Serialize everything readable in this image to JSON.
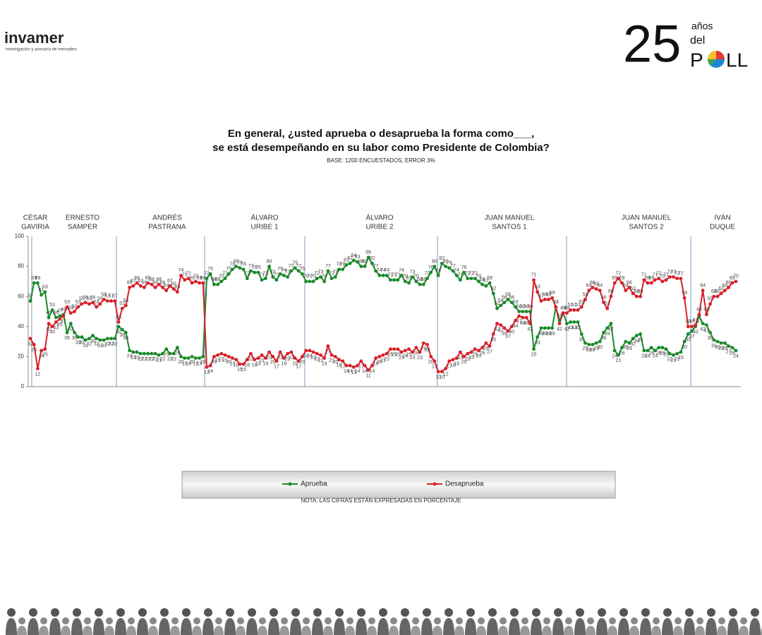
{
  "header": {
    "logo": "invamer",
    "logo_sub": "investigación y asesoría de mercadeo",
    "badge_num": "25",
    "badge_a": "años",
    "badge_b": "del",
    "badge_c": "P",
    "badge_d": "LL"
  },
  "chart_data": {
    "type": "line",
    "title": "En general, ¿usted aprueba o desaprueba la forma como___,",
    "title2": "se está desempeñando en su labor como Presidente de Colombia?",
    "subtitle": "BASE: 1200 ENCUESTADOS, ERROR 3%",
    "terms": [
      [
        "CÉSAR",
        "GAVIRIA"
      ],
      [
        "ERNESTO",
        "SAMPER"
      ],
      [
        "ANDRÉS",
        "PASTRANA"
      ],
      [
        "ÁLVARO",
        "URIBE 1"
      ],
      [
        "ÁLVARO",
        "URIBE 2"
      ],
      [
        "JUAN MANUEL",
        "SANTOS 1"
      ],
      [
        "JUAN MANUEL",
        "SANTOS 2"
      ],
      [
        "IVÁN",
        "DUQUE"
      ]
    ],
    "ylim": [
      0,
      100
    ],
    "yticks": [
      0,
      20,
      40,
      60,
      80,
      100
    ],
    "series": [
      {
        "name": "Aprueba",
        "color": "#1a8a2a",
        "values": [
          57,
          69,
          69,
          61,
          63,
          46,
          51,
          46,
          47,
          48,
          36,
          42,
          36,
          33,
          33,
          31,
          32,
          34,
          32,
          31,
          31,
          32,
          32,
          32,
          40,
          38,
          36,
          24,
          23,
          23,
          22,
          22,
          22,
          22,
          22,
          21,
          22,
          25,
          22,
          22,
          26,
          20,
          19,
          19,
          20,
          19,
          19,
          20,
          72,
          75,
          68,
          68,
          70,
          72,
          75,
          78,
          80,
          79,
          78,
          72,
          77,
          76,
          76,
          71,
          72,
          80,
          73,
          71,
          75,
          74,
          73,
          77,
          79,
          77,
          75,
          70,
          70,
          70,
          72,
          73,
          70,
          77,
          72,
          73,
          78,
          78,
          81,
          82,
          84,
          83,
          80,
          80,
          86,
          82,
          77,
          74,
          74,
          74,
          71,
          71,
          71,
          74,
          70,
          69,
          73,
          70,
          68,
          68,
          72,
          76,
          80,
          74,
          82,
          80,
          79,
          77,
          74,
          71,
          76,
          72,
          72,
          72,
          70,
          68,
          67,
          69,
          62,
          52,
          54,
          56,
          58,
          56,
          53,
          50,
          50,
          50,
          50,
          25,
          33,
          39,
          39,
          39,
          39,
          53,
          44,
          49,
          42,
          43,
          43,
          43,
          35,
          29,
          28,
          28,
          29,
          30,
          36,
          39,
          42,
          24,
          21,
          26,
          30,
          29,
          32,
          34,
          35,
          24,
          24,
          26,
          24,
          26,
          26,
          25,
          22,
          21,
          22,
          23,
          30,
          35,
          37,
          40,
          47,
          42,
          41,
          36,
          31,
          30,
          29,
          29,
          27,
          26,
          24
        ]
      },
      {
        "name": "Desaprueba",
        "color": "#d8202a",
        "values": [
          32,
          28,
          12,
          24,
          25,
          42,
          40,
          43,
          45,
          47,
          53,
          49,
          50,
          53,
          55,
          56,
          55,
          56,
          53,
          55,
          58,
          57,
          57,
          57,
          43,
          52,
          54,
          66,
          67,
          69,
          67,
          66,
          69,
          68,
          66,
          68,
          66,
          64,
          67,
          65,
          63,
          74,
          71,
          72,
          69,
          70,
          69,
          69,
          13,
          14,
          20,
          21,
          22,
          21,
          20,
          19,
          18,
          15,
          15,
          18,
          22,
          18,
          19,
          21,
          19,
          23,
          20,
          17,
          23,
          19,
          22,
          23,
          19,
          17,
          20,
          24,
          24,
          23,
          22,
          21,
          19,
          27,
          21,
          20,
          18,
          17,
          14,
          14,
          13,
          14,
          17,
          14,
          11,
          14,
          19,
          20,
          21,
          22,
          25,
          25,
          25,
          23,
          24,
          25,
          23,
          26,
          23,
          29,
          28,
          20,
          17,
          10,
          10,
          12,
          17,
          18,
          19,
          23,
          20,
          22,
          23,
          25,
          24,
          26,
          29,
          27,
          35,
          42,
          41,
          39,
          37,
          40,
          44,
          47,
          46,
          46,
          42,
          71,
          63,
          57,
          58,
          58,
          59,
          53,
          42,
          49,
          49,
          51,
          51,
          51,
          53,
          58,
          64,
          66,
          65,
          64,
          56,
          52,
          60,
          69,
          72,
          69,
          64,
          66,
          62,
          60,
          60,
          71,
          69,
          69,
          71,
          72,
          70,
          71,
          73,
          73,
          72,
          72,
          59,
          40,
          40,
          41,
          48,
          64,
          48,
          55,
          60,
          60,
          62,
          64,
          66,
          69,
          70
        ]
      }
    ],
    "note": "NOTA: LAS CIFRAS ESTÁN EXPRESADAS EN PORCENTAJE"
  }
}
